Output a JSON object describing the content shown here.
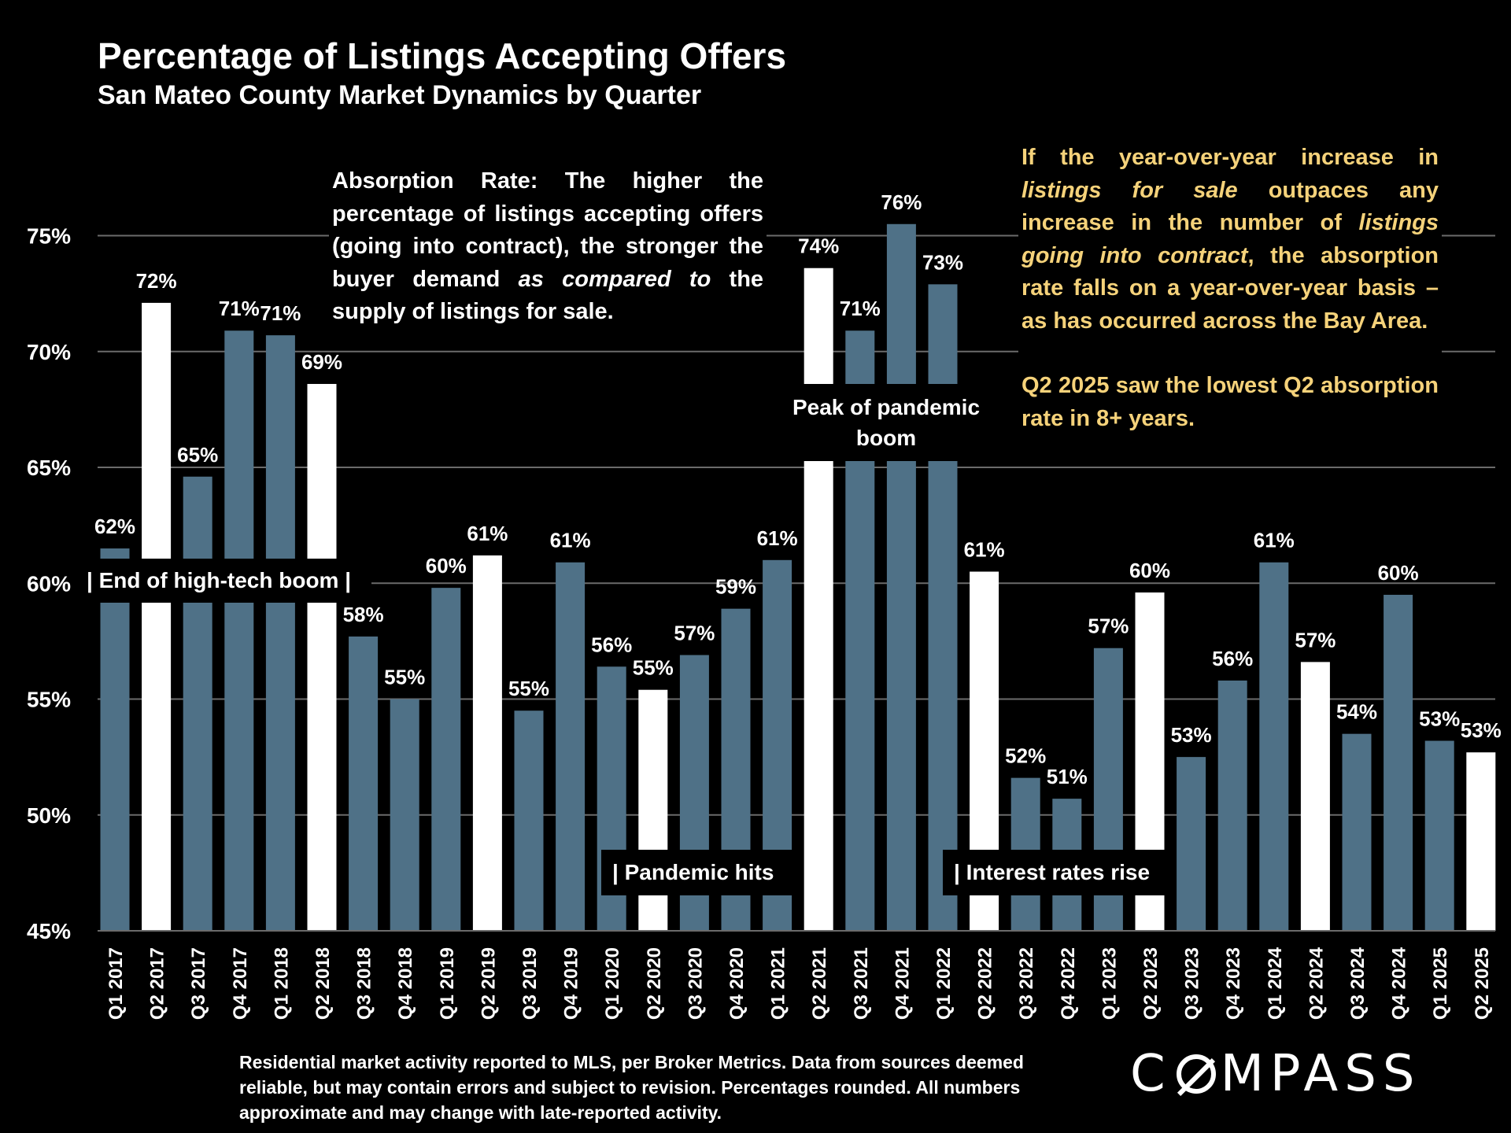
{
  "header": {
    "title": "Percentage of Listings Accepting Offers",
    "subtitle": "San Mateo County Market Dynamics by Quarter"
  },
  "chart_data": {
    "type": "bar",
    "categories": [
      "Q1 2017",
      "Q2 2017",
      "Q3 2017",
      "Q4 2017",
      "Q1 2018",
      "Q2 2018",
      "Q3 2018",
      "Q4 2018",
      "Q1 2019",
      "Q2 2019",
      "Q3 2019",
      "Q4 2019",
      "Q1 2020",
      "Q2 2020",
      "Q3 2020",
      "Q4 2020",
      "Q1 2021",
      "Q2 2021",
      "Q3 2021",
      "Q4 2021",
      "Q1 2022",
      "Q2 2022",
      "Q3 2022",
      "Q4 2022",
      "Q1 2023",
      "Q2 2023",
      "Q3 2023",
      "Q4 2023",
      "Q1 2024",
      "Q2 2024",
      "Q3 2024",
      "Q4 2024",
      "Q1 2025",
      "Q2 2025"
    ],
    "values": [
      61.5,
      72.1,
      64.6,
      70.9,
      70.7,
      68.6,
      57.7,
      55.0,
      59.8,
      61.2,
      54.5,
      60.9,
      56.4,
      55.4,
      56.9,
      58.9,
      61.0,
      73.6,
      70.9,
      75.5,
      72.9,
      60.5,
      51.6,
      50.7,
      57.2,
      59.6,
      52.5,
      55.8,
      60.9,
      56.6,
      53.5,
      59.5,
      53.2,
      52.7
    ],
    "data_labels": [
      "62%",
      "72%",
      "65%",
      "71%",
      "71%",
      "69%",
      "58%",
      "55%",
      "60%",
      "61%",
      "55%",
      "61%",
      "56%",
      "55%",
      "57%",
      "59%",
      "61%",
      "74%",
      "71%",
      "76%",
      "73%",
      "61%",
      "52%",
      "51%",
      "57%",
      "60%",
      "53%",
      "56%",
      "61%",
      "57%",
      "54%",
      "60%",
      "53%",
      "53%"
    ],
    "highlighted": [
      "Q2 2017",
      "Q2 2018",
      "Q2 2019",
      "Q2 2020",
      "Q2 2021",
      "Q2 2022",
      "Q2 2023",
      "Q2 2024",
      "Q2 2025"
    ],
    "y_ticks": [
      "45%",
      "50%",
      "55%",
      "60%",
      "65%",
      "70%",
      "75%"
    ],
    "y_tick_values": [
      45,
      50,
      55,
      60,
      65,
      70,
      75
    ],
    "ylim": [
      45,
      77
    ],
    "grid": true,
    "colors": {
      "bar": "#4f7187",
      "highlight": "#ffffff",
      "background": "#000000",
      "grid": "#6b6b6b",
      "note_text": "#f5d27a"
    }
  },
  "notes": {
    "absorption": "Absorption Rate: The higher the percentage of listings accepting offers (going into contract), the stronger the buyer demand",
    "absorption_italic": "as compared to",
    "absorption_end": "the supply of listings for sale.",
    "insight_1a": "If the year-over-year increase in",
    "insight_1b": "listings for sale",
    "insight_1c": "outpaces any increase in the number of",
    "insight_1d": "listings going into contract",
    "insight_1e": ", the absorption rate falls on a year-over-year basis – as has occurred across the Bay Area.",
    "insight_2": "Q2 2025 saw the lowest Q2 absorption rate in 8+ years."
  },
  "events": {
    "hightech": "|  End of high-tech boom  |",
    "pandemic": "|  Pandemic hits",
    "rates": "|  Interest rates rise",
    "peak": "Peak of pandemic boom"
  },
  "footer": {
    "source": "Residential market activity reported to MLS, per Broker Metrics. Data from sources deemed reliable, but may contain errors and subject to revision. Percentages rounded. All numbers approximate and may change with late-reported activity.",
    "logo": "COMPASS"
  }
}
